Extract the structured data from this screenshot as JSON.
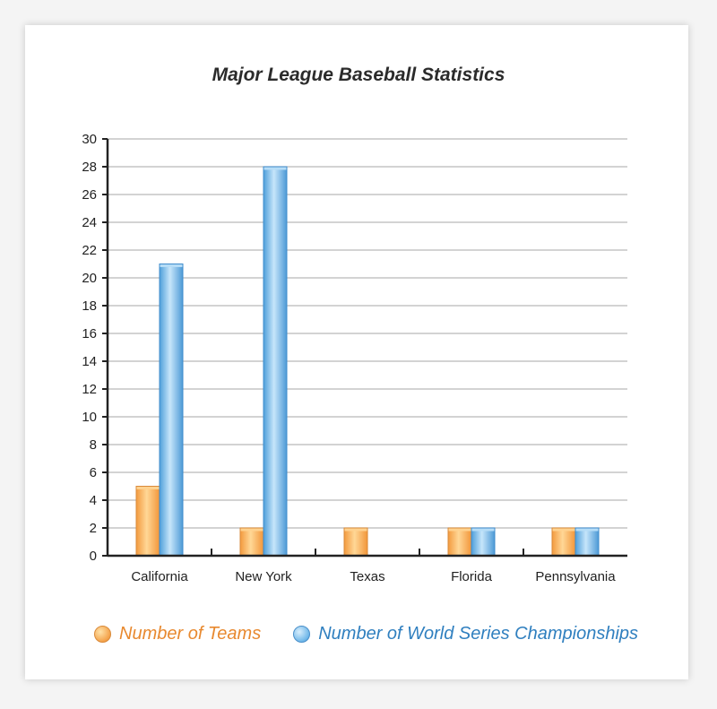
{
  "chart_data": {
    "type": "bar",
    "title": "Major League Baseball Statistics",
    "categories": [
      "California",
      "New York",
      "Texas",
      "Florida",
      "Pennsylvania"
    ],
    "series": [
      {
        "name": "Number of Teams",
        "values": [
          5,
          2,
          2,
          2,
          2
        ],
        "color": "#f6a24a"
      },
      {
        "name": "Number of World Series Championships",
        "values": [
          21,
          28,
          0,
          2,
          2
        ],
        "color": "#5fb0e6"
      }
    ],
    "ylim": [
      0,
      30
    ],
    "yticks": [
      0,
      2,
      4,
      6,
      8,
      10,
      12,
      14,
      16,
      18,
      20,
      22,
      24,
      26,
      28,
      30
    ],
    "grid": true,
    "legend_position": "bottom"
  }
}
